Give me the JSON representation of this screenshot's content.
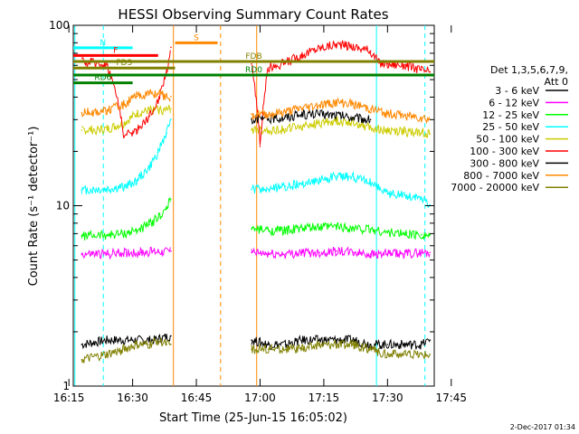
{
  "chart_data": {
    "type": "line",
    "title": "HESSI Observing Summary Count Rates",
    "xlabel": "Start Time (25-Jun-15 16:05:02)",
    "ylabel": "Count Rate (s⁻¹ detector⁻¹)",
    "x_range_minutes": [
      16.03,
      101.0
    ],
    "x_ticks": [
      {
        "label": "16:15",
        "minute": 15
      },
      {
        "label": "16:30",
        "minute": 30
      },
      {
        "label": "16:45",
        "minute": 45
      },
      {
        "label": "17:00",
        "minute": 60
      },
      {
        "label": "17:15",
        "minute": 75
      },
      {
        "label": "17:30",
        "minute": 90
      },
      {
        "label": "17:45",
        "minute": 105
      }
    ],
    "y_scale": "log",
    "ylim": [
      1,
      100
    ],
    "y_ticks": [
      {
        "label": "1",
        "value": 1
      },
      {
        "label": "10",
        "value": 10
      },
      {
        "label": "100",
        "value": 100
      }
    ],
    "legend": {
      "placement": "right",
      "header": [
        "Det 1,3,5,6,7,9,",
        "Att 0"
      ]
    },
    "series": [
      {
        "name": "3 - 6 keV",
        "color": "#000000",
        "x": [
          18,
          24,
          30,
          35,
          39,
          58,
          62,
          66,
          70,
          74,
          78,
          82,
          86,
          90,
          94,
          98,
          100
        ],
        "y": [
          1.7,
          1.8,
          1.8,
          1.8,
          1.9,
          1.8,
          1.7,
          1.7,
          1.8,
          1.8,
          1.8,
          1.8,
          1.7,
          1.7,
          1.7,
          1.7,
          1.8
        ]
      },
      {
        "name": "6 - 12 keV",
        "color": "#ff00ff",
        "x": [
          18,
          24,
          28,
          32,
          36,
          39,
          58,
          62,
          66,
          70,
          74,
          78,
          82,
          86,
          90,
          94,
          98,
          100
        ],
        "y": [
          5.4,
          5.4,
          5.5,
          5.5,
          5.6,
          5.6,
          5.5,
          5.4,
          5.4,
          5.5,
          5.5,
          5.6,
          5.5,
          5.4,
          5.4,
          5.4,
          5.5,
          5.5
        ]
      },
      {
        "name": "12 - 25 keV",
        "color": "#00ff00",
        "x": [
          18,
          24,
          28,
          31,
          34,
          36,
          38,
          39,
          58,
          62,
          66,
          70,
          74,
          78,
          82,
          86,
          90,
          94,
          98,
          100
        ],
        "y": [
          6.8,
          6.9,
          7.0,
          7.3,
          7.9,
          8.6,
          9.6,
          10.9,
          7.4,
          7.3,
          7.3,
          7.5,
          7.6,
          7.7,
          7.5,
          7.4,
          7.1,
          7.0,
          6.9,
          6.9
        ]
      },
      {
        "name": "25 - 50 keV",
        "color": "#00ffff",
        "x": [
          18,
          24,
          28,
          31,
          34,
          36,
          38,
          39,
          58,
          62,
          66,
          70,
          74,
          78,
          82,
          86,
          90,
          94,
          98,
          100
        ],
        "y": [
          12.2,
          12.3,
          12.7,
          13.8,
          16.3,
          19.8,
          25.2,
          30.1,
          12.3,
          12.3,
          12.8,
          13.2,
          13.9,
          14.6,
          14.4,
          13.5,
          11.6,
          11.4,
          11.0,
          10.1
        ]
      },
      {
        "name": "50 - 100 keV",
        "color": "#cccc00",
        "x": [
          18,
          24,
          28,
          31,
          34,
          36,
          38,
          39,
          58,
          62,
          66,
          70,
          74,
          78,
          82,
          86,
          90,
          94,
          98,
          100
        ],
        "y": [
          26.2,
          26.5,
          28.7,
          32.4,
          33.8,
          34.0,
          34.0,
          34.4,
          26.3,
          26.1,
          26.6,
          27.5,
          28.7,
          29.6,
          29.1,
          27.1,
          26.0,
          25.8,
          25.6,
          25.0
        ]
      },
      {
        "name": "100 - 300 keV",
        "color": "#ff0000",
        "x": [
          18,
          20,
          24,
          28,
          31,
          34,
          36,
          38,
          39,
          58,
          60,
          62,
          66,
          70,
          74,
          78,
          82,
          86,
          88,
          90,
          94,
          98,
          100
        ],
        "y": [
          62.6,
          62.6,
          60.4,
          24.2,
          26.2,
          31.4,
          38.1,
          54.9,
          75.5,
          61.0,
          21.3,
          58.2,
          62.2,
          68.7,
          74.9,
          78.5,
          76.2,
          72.1,
          61.8,
          61.1,
          60.3,
          56.6,
          55.2
        ]
      },
      {
        "name": "300 - 800 keV",
        "color": "#000000",
        "x": [
          58,
          62,
          66,
          70,
          74,
          78,
          82,
          86
        ],
        "y": [
          30.1,
          30.4,
          31.1,
          32.0,
          32.2,
          31.9,
          30.8,
          30.0
        ]
      },
      {
        "name": "800 - 7000 keV",
        "color": "#ff8800",
        "x": [
          18,
          24,
          28,
          31,
          34,
          36,
          38,
          39,
          58,
          62,
          66,
          70,
          74,
          78,
          82,
          86,
          90,
          94,
          98,
          100
        ],
        "y": [
          32.7,
          33.7,
          36.5,
          40.4,
          42.0,
          41.7,
          40.4,
          40.3,
          32.2,
          32.1,
          33.1,
          34.8,
          36.2,
          37.3,
          36.7,
          34.3,
          32.4,
          31.7,
          30.8,
          30.0
        ]
      },
      {
        "name": "7000 - 20000 keV",
        "color": "#808000",
        "x": [
          18,
          24,
          28,
          31,
          34,
          36,
          38,
          39,
          58,
          62,
          66,
          70,
          74,
          78,
          82,
          86,
          90,
          94,
          98,
          100
        ],
        "y": [
          1.4,
          1.5,
          1.6,
          1.7,
          1.7,
          1.8,
          1.7,
          1.7,
          1.6,
          1.6,
          1.6,
          1.6,
          1.7,
          1.7,
          1.7,
          1.6,
          1.5,
          1.5,
          1.5,
          1.5
        ]
      }
    ],
    "flag_bars": [
      {
        "label": "N",
        "color": "#00ffff",
        "x": [
          16.03,
          30
        ],
        "y": 75
      },
      {
        "label": "F",
        "color": "#ff0000",
        "x": [
          16.03,
          36
        ],
        "y": 68
      },
      {
        "label": "S",
        "color": "#ff8800",
        "x": [
          40,
          50
        ],
        "y": 80
      },
      {
        "label": "FDB",
        "color": "#808000",
        "x": [
          16.03,
          101
        ],
        "y": 63
      },
      {
        "label": "FD3",
        "color": "#808000",
        "x": [
          16.03,
          40
        ],
        "y": 58
      },
      {
        "label": "RD0",
        "color": "#008000",
        "x": [
          16.03,
          101
        ],
        "y": 53
      },
      {
        "label": "RD6",
        "color": "#008000",
        "x": [
          16.03,
          30
        ],
        "y": 48
      }
    ],
    "vertical_markers": [
      {
        "minute": 16.4,
        "color": "#00ffff",
        "style": "solid"
      },
      {
        "minute": 23.1,
        "color": "#00ffff",
        "style": "dashed"
      },
      {
        "minute": 39.6,
        "color": "#ff8800",
        "style": "solid"
      },
      {
        "minute": 50.7,
        "color": "#ff8800",
        "style": "dashed"
      },
      {
        "minute": 59.2,
        "color": "#ff8800",
        "style": "solid"
      },
      {
        "minute": 87.4,
        "color": "#00ffff",
        "style": "solid"
      },
      {
        "minute": 98.8,
        "color": "#00ffff",
        "style": "dashed"
      }
    ],
    "grid": false
  },
  "footer": {
    "timestamp": "2-Dec-2017 01:34"
  }
}
